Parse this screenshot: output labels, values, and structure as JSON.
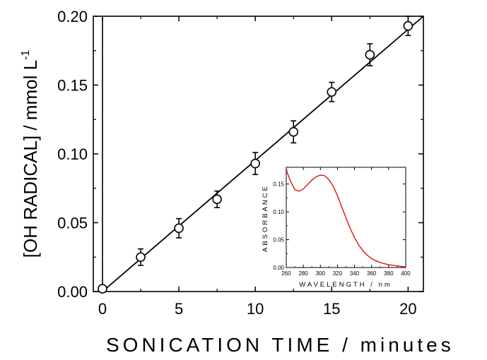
{
  "chart_data": [
    {
      "type": "scatter",
      "xlabel": "SONICATION TIME / minutes",
      "ylabel": "[OH RADICAL] / mmol L",
      "ylabel_superscript": "-1",
      "xlim": [
        -0.6,
        21
      ],
      "ylim": [
        0,
        0.2
      ],
      "x_ticks": [
        "0",
        "5",
        "10",
        "15",
        "20"
      ],
      "y_ticks": [
        "0.00",
        "0.05",
        "0.10",
        "0.15",
        "0.20"
      ],
      "vertical_reference_line_x": 0,
      "series": [
        {
          "marker": "open-circle",
          "x": [
            0,
            2.5,
            5,
            7.5,
            10,
            12.5,
            15,
            17.5,
            20
          ],
          "y": [
            0.002,
            0.025,
            0.046,
            0.067,
            0.093,
            0.116,
            0.145,
            0.172,
            0.193
          ],
          "error": [
            0.0,
            0.006,
            0.007,
            0.006,
            0.008,
            0.008,
            0.007,
            0.008,
            0.007
          ]
        }
      ],
      "fit_line": {
        "x": [
          0,
          21
        ],
        "y": [
          0.0,
          0.2
        ]
      },
      "grid": false
    },
    {
      "type": "line",
      "xlabel": "WAVELENGTH / nm",
      "ylabel": "ABSORBANCE",
      "xlim": [
        260,
        400
      ],
      "ylim": [
        0,
        0.18
      ],
      "x_ticks": [
        "260",
        "280",
        "300",
        "320",
        "340",
        "360",
        "380",
        "400"
      ],
      "y_ticks": [
        "0.00",
        "0.05",
        "0.10",
        "0.15"
      ],
      "color": "#e00000",
      "x": [
        260,
        265,
        270,
        275,
        280,
        285,
        290,
        295,
        300,
        305,
        310,
        315,
        320,
        325,
        330,
        335,
        340,
        345,
        350,
        355,
        360,
        365,
        370,
        375,
        380,
        385,
        390,
        395,
        400
      ],
      "y": [
        0.175,
        0.155,
        0.14,
        0.137,
        0.141,
        0.149,
        0.157,
        0.163,
        0.166,
        0.165,
        0.158,
        0.146,
        0.129,
        0.109,
        0.089,
        0.07,
        0.054,
        0.04,
        0.03,
        0.022,
        0.016,
        0.012,
        0.009,
        0.007,
        0.005,
        0.004,
        0.003,
        0.002,
        0.001
      ],
      "grid": false
    }
  ]
}
